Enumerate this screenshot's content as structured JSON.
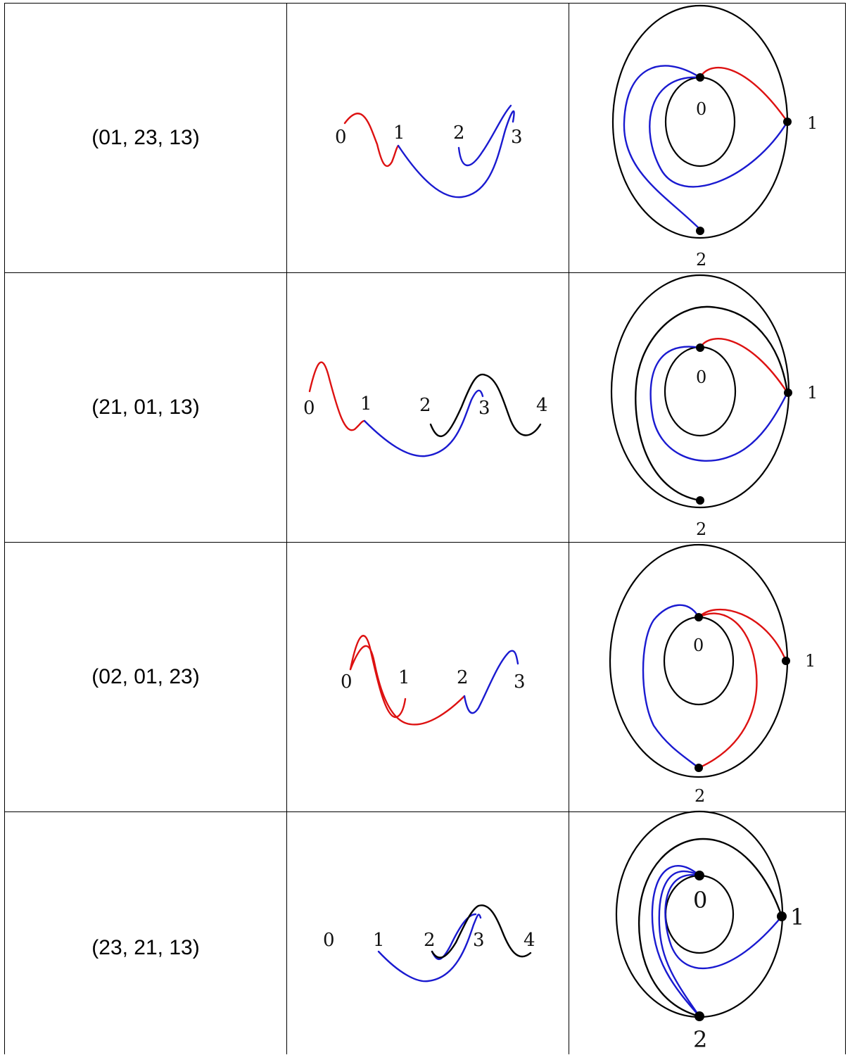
{
  "rows": [
    {
      "label": "(01, 23, 13)",
      "strand": {
        "points": [
          "0",
          "1",
          "2",
          "3"
        ]
      },
      "disk": {
        "inner": "0",
        "right": "1",
        "bottom": "2"
      }
    },
    {
      "label": "(21, 01, 13)",
      "strand": {
        "points": [
          "0",
          "1",
          "2",
          "3",
          "4"
        ]
      },
      "disk": {
        "inner": "0",
        "right": "1",
        "bottom": "2"
      }
    },
    {
      "label": "(02, 01, 23)",
      "strand": {
        "points": [
          "0",
          "1",
          "2",
          "3"
        ]
      },
      "disk": {
        "inner": "0",
        "right": "1",
        "bottom": "2"
      }
    },
    {
      "label": "(23, 21, 13)",
      "strand": {
        "points": [
          "0",
          "1",
          "2",
          "3",
          "4"
        ]
      },
      "disk": {
        "inner": "0",
        "right": "1",
        "bottom": "2"
      }
    }
  ],
  "colors": {
    "red": "#dd1111",
    "blue": "#1a1ad0",
    "black": "#000000"
  }
}
